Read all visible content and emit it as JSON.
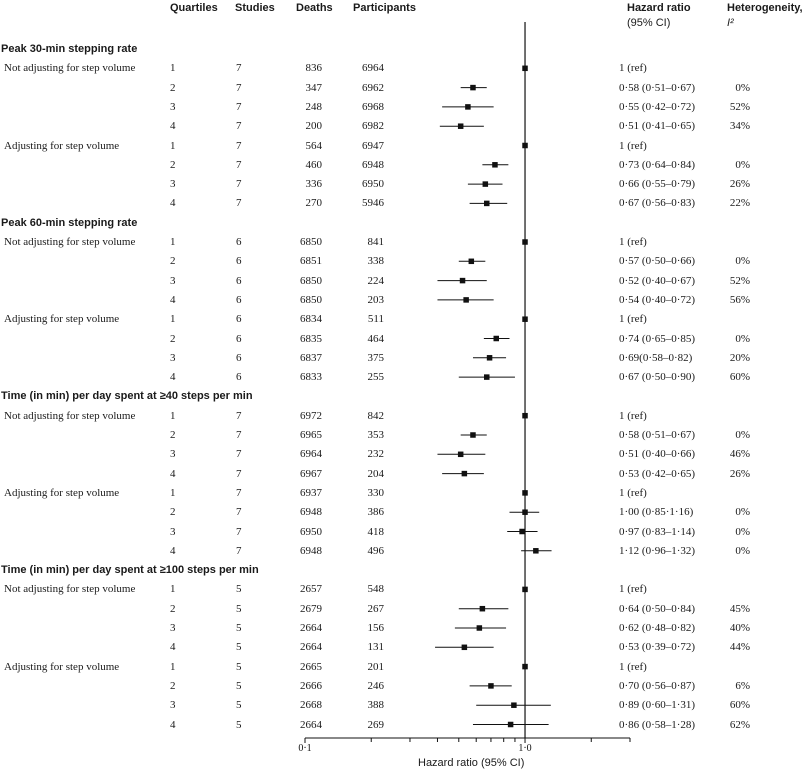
{
  "headers": {
    "quartiles": "Quartiles",
    "studies": "Studies",
    "deaths": "Deaths",
    "participants": "Participants",
    "hr_line1": "Hazard ratio",
    "hr_line2": "(95% CI)",
    "het_line1": "Heterogeneity,",
    "het_line2": "I²"
  },
  "chart_data": {
    "type": "forest",
    "xscale": "log",
    "xlim": [
      0.1,
      3.0
    ],
    "ref_line": 1.0,
    "xticks": [
      "0·1",
      "1·0"
    ],
    "xlabel": "Hazard ratio (95% CI)",
    "sections": [
      {
        "title": "Peak 30-min stepping rate",
        "groups": [
          {
            "label": "Not adjusting for step volume",
            "rows": [
              {
                "q": "1",
                "studies": "7",
                "deaths": "836",
                "participants": "6964",
                "hr": 1.0,
                "lo": null,
                "hi": null,
                "hr_text": "1 (ref)",
                "het": ""
              },
              {
                "q": "2",
                "studies": "7",
                "deaths": "347",
                "participants": "6962",
                "hr": 0.58,
                "lo": 0.51,
                "hi": 0.67,
                "hr_text": "0·58 (0·51–0·67)",
                "het": "0%"
              },
              {
                "q": "3",
                "studies": "7",
                "deaths": "248",
                "participants": "6968",
                "hr": 0.55,
                "lo": 0.42,
                "hi": 0.72,
                "hr_text": "0·55 (0·42–0·72)",
                "het": "52%"
              },
              {
                "q": "4",
                "studies": "7",
                "deaths": "200",
                "participants": "6982",
                "hr": 0.51,
                "lo": 0.41,
                "hi": 0.65,
                "hr_text": "0·51 (0·41–0·65)",
                "het": "34%"
              }
            ]
          },
          {
            "label": "Adjusting for step volume",
            "rows": [
              {
                "q": "1",
                "studies": "7",
                "deaths": "564",
                "participants": "6947",
                "hr": 1.0,
                "lo": null,
                "hi": null,
                "hr_text": "1 (ref)",
                "het": ""
              },
              {
                "q": "2",
                "studies": "7",
                "deaths": "460",
                "participants": "6948",
                "hr": 0.73,
                "lo": 0.64,
                "hi": 0.84,
                "hr_text": "0·73 (0·64–0·84)",
                "het": "0%"
              },
              {
                "q": "3",
                "studies": "7",
                "deaths": "336",
                "participants": "6950",
                "hr": 0.66,
                "lo": 0.55,
                "hi": 0.79,
                "hr_text": "0·66 (0·55–0·79)",
                "het": "26%"
              },
              {
                "q": "4",
                "studies": "7",
                "deaths": "270",
                "participants": "5946",
                "hr": 0.67,
                "lo": 0.56,
                "hi": 0.83,
                "hr_text": "0·67 (0·56–0·83)",
                "het": "22%"
              }
            ]
          }
        ]
      },
      {
        "title": "Peak 60-min stepping rate",
        "groups": [
          {
            "label": "Not adjusting for step volume",
            "rows": [
              {
                "q": "1",
                "studies": "6",
                "deaths": "6850",
                "participants": "841",
                "hr": 1.0,
                "lo": null,
                "hi": null,
                "hr_text": "1 (ref)",
                "het": ""
              },
              {
                "q": "2",
                "studies": "6",
                "deaths": "6851",
                "participants": "338",
                "hr": 0.57,
                "lo": 0.5,
                "hi": 0.66,
                "hr_text": "0·57 (0·50–0·66)",
                "het": "0%"
              },
              {
                "q": "3",
                "studies": "6",
                "deaths": "6850",
                "participants": "224",
                "hr": 0.52,
                "lo": 0.4,
                "hi": 0.67,
                "hr_text": "0·52 (0·40–0·67)",
                "het": "52%"
              },
              {
                "q": "4",
                "studies": "6",
                "deaths": "6850",
                "participants": "203",
                "hr": 0.54,
                "lo": 0.4,
                "hi": 0.72,
                "hr_text": "0·54 (0·40–0·72)",
                "het": "56%"
              }
            ]
          },
          {
            "label": "Adjusting for step volume",
            "rows": [
              {
                "q": "1",
                "studies": "6",
                "deaths": "6834",
                "participants": "511",
                "hr": 1.0,
                "lo": null,
                "hi": null,
                "hr_text": "1 (ref)",
                "het": ""
              },
              {
                "q": "2",
                "studies": "6",
                "deaths": "6835",
                "participants": "464",
                "hr": 0.74,
                "lo": 0.65,
                "hi": 0.85,
                "hr_text": "0·74 (0·65–0·85)",
                "het": "0%"
              },
              {
                "q": "3",
                "studies": "6",
                "deaths": "6837",
                "participants": "375",
                "hr": 0.69,
                "lo": 0.58,
                "hi": 0.82,
                "hr_text": "0·69(0·58–0·82)",
                "het": "20%"
              },
              {
                "q": "4",
                "studies": "6",
                "deaths": "6833",
                "participants": "255",
                "hr": 0.67,
                "lo": 0.5,
                "hi": 0.9,
                "hr_text": "0·67 (0·50–0·90)",
                "het": "60%"
              }
            ]
          }
        ]
      },
      {
        "title": "Time (in min) per day spent at ≥40 steps per min",
        "groups": [
          {
            "label": "Not adjusting for step volume",
            "rows": [
              {
                "q": "1",
                "studies": "7",
                "deaths": "6972",
                "participants": "842",
                "hr": 1.0,
                "lo": null,
                "hi": null,
                "hr_text": "1 (ref)",
                "het": ""
              },
              {
                "q": "2",
                "studies": "7",
                "deaths": "6965",
                "participants": "353",
                "hr": 0.58,
                "lo": 0.51,
                "hi": 0.67,
                "hr_text": "0·58 (0·51–0·67)",
                "het": "0%"
              },
              {
                "q": "3",
                "studies": "7",
                "deaths": "6964",
                "participants": "232",
                "hr": 0.51,
                "lo": 0.4,
                "hi": 0.66,
                "hr_text": "0·51 (0·40–0·66)",
                "het": "46%"
              },
              {
                "q": "4",
                "studies": "7",
                "deaths": "6967",
                "participants": "204",
                "hr": 0.53,
                "lo": 0.42,
                "hi": 0.65,
                "hr_text": "0·53 (0·42–0·65)",
                "het": "26%"
              }
            ]
          },
          {
            "label": "Adjusting for step volume",
            "rows": [
              {
                "q": "1",
                "studies": "7",
                "deaths": "6937",
                "participants": "330",
                "hr": 1.0,
                "lo": null,
                "hi": null,
                "hr_text": "1 (ref)",
                "het": ""
              },
              {
                "q": "2",
                "studies": "7",
                "deaths": "6948",
                "participants": "386",
                "hr": 1.0,
                "lo": 0.85,
                "hi": 1.16,
                "hr_text": "1·00 (0·85·1·16)",
                "het": "0%"
              },
              {
                "q": "3",
                "studies": "7",
                "deaths": "6950",
                "participants": "418",
                "hr": 0.97,
                "lo": 0.83,
                "hi": 1.14,
                "hr_text": "0·97 (0·83–1·14)",
                "het": "0%"
              },
              {
                "q": "4",
                "studies": "7",
                "deaths": "6948",
                "participants": "496",
                "hr": 1.12,
                "lo": 0.96,
                "hi": 1.32,
                "hr_text": "1·12 (0·96–1·32)",
                "het": "0%"
              }
            ]
          }
        ]
      },
      {
        "title": "Time (in min) per day spent at ≥100 steps per min",
        "groups": [
          {
            "label": "Not adjusting for step volume",
            "rows": [
              {
                "q": "1",
                "studies": "5",
                "deaths": "2657",
                "participants": "548",
                "hr": 1.0,
                "lo": null,
                "hi": null,
                "hr_text": "1 (ref)",
                "het": ""
              },
              {
                "q": "2",
                "studies": "5",
                "deaths": "2679",
                "participants": "267",
                "hr": 0.64,
                "lo": 0.5,
                "hi": 0.84,
                "hr_text": "0·64 (0·50–0·84)",
                "het": "45%"
              },
              {
                "q": "3",
                "studies": "5",
                "deaths": "2664",
                "participants": "156",
                "hr": 0.62,
                "lo": 0.48,
                "hi": 0.82,
                "hr_text": "0·62 (0·48–0·82)",
                "het": "40%"
              },
              {
                "q": "4",
                "studies": "5",
                "deaths": "2664",
                "participants": "131",
                "hr": 0.53,
                "lo": 0.39,
                "hi": 0.72,
                "hr_text": "0·53 (0·39–0·72)",
                "het": "44%"
              }
            ]
          },
          {
            "label": "Adjusting for step volume",
            "rows": [
              {
                "q": "1",
                "studies": "5",
                "deaths": "2665",
                "participants": "201",
                "hr": 1.0,
                "lo": null,
                "hi": null,
                "hr_text": "1 (ref)",
                "het": ""
              },
              {
                "q": "2",
                "studies": "5",
                "deaths": "2666",
                "participants": "246",
                "hr": 0.7,
                "lo": 0.56,
                "hi": 0.87,
                "hr_text": "0·70 (0·56–0·87)",
                "het": "6%"
              },
              {
                "q": "3",
                "studies": "5",
                "deaths": "2668",
                "participants": "388",
                "hr": 0.89,
                "lo": 0.6,
                "hi": 1.31,
                "hr_text": "0·89 (0·60–1·31)",
                "het": "60%"
              },
              {
                "q": "4",
                "studies": "5",
                "deaths": "2664",
                "participants": "269",
                "hr": 0.86,
                "lo": 0.58,
                "hi": 1.28,
                "hr_text": "0·86 (0·58–1·28)",
                "het": "62%"
              }
            ]
          }
        ]
      }
    ]
  }
}
